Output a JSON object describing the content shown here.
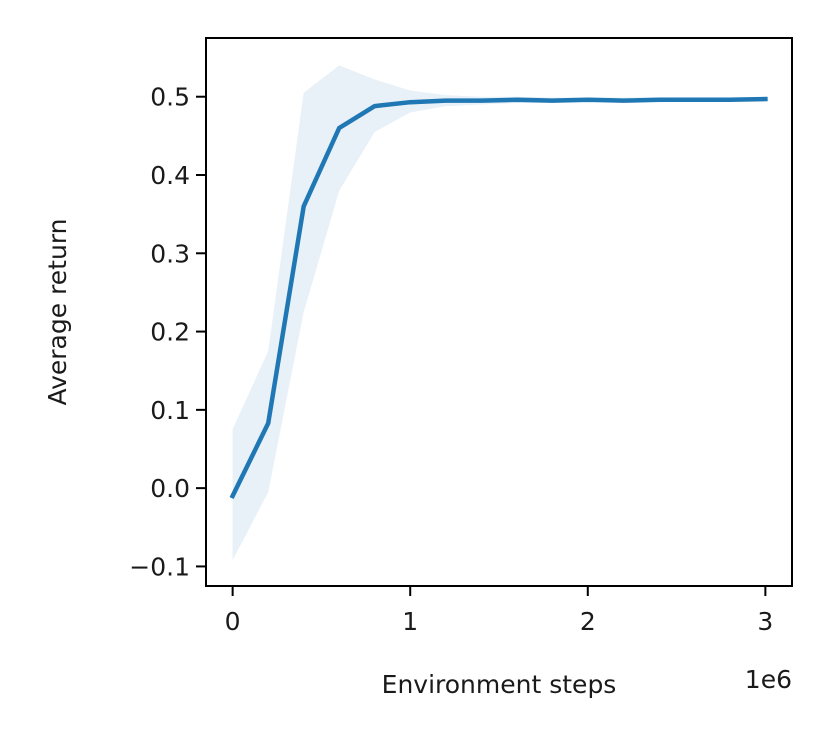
{
  "chart_data": {
    "type": "line",
    "xlabel": "Environment steps",
    "ylabel": "Average return",
    "x_offset_label": "1e6",
    "xlim": [
      -0.15,
      3.15
    ],
    "ylim": [
      -0.125,
      0.575
    ],
    "x_ticks": [
      {
        "value": 0,
        "label": "0"
      },
      {
        "value": 1,
        "label": "1"
      },
      {
        "value": 2,
        "label": "2"
      },
      {
        "value": 3,
        "label": "3"
      }
    ],
    "y_ticks": [
      {
        "value": -0.1,
        "label": "−0.1"
      },
      {
        "value": 0.0,
        "label": "0.0"
      },
      {
        "value": 0.1,
        "label": "0.1"
      },
      {
        "value": 0.2,
        "label": "0.2"
      },
      {
        "value": 0.3,
        "label": "0.3"
      },
      {
        "value": 0.4,
        "label": "0.4"
      },
      {
        "value": 0.5,
        "label": "0.5"
      }
    ],
    "grid": false,
    "series": [
      {
        "color": "#1f77b4",
        "band_color": "#e8f0f8",
        "x": [
          0,
          0.2,
          0.4,
          0.6,
          0.8,
          1.0,
          1.2,
          1.4,
          1.6,
          1.8,
          2.0,
          2.2,
          2.4,
          2.6,
          2.8,
          3.0
        ],
        "y": [
          -0.01,
          0.083,
          0.36,
          0.46,
          0.488,
          0.493,
          0.495,
          0.495,
          0.496,
          0.495,
          0.496,
          0.495,
          0.496,
          0.496,
          0.496,
          0.497
        ],
        "lower": [
          -0.092,
          -0.005,
          0.225,
          0.38,
          0.455,
          0.48,
          0.488,
          0.49,
          0.492,
          0.492,
          0.493,
          0.493,
          0.493,
          0.494,
          0.494,
          0.494
        ],
        "upper": [
          0.075,
          0.175,
          0.505,
          0.54,
          0.522,
          0.508,
          0.502,
          0.5,
          0.5,
          0.499,
          0.499,
          0.499,
          0.499,
          0.499,
          0.499,
          0.5
        ]
      }
    ]
  }
}
